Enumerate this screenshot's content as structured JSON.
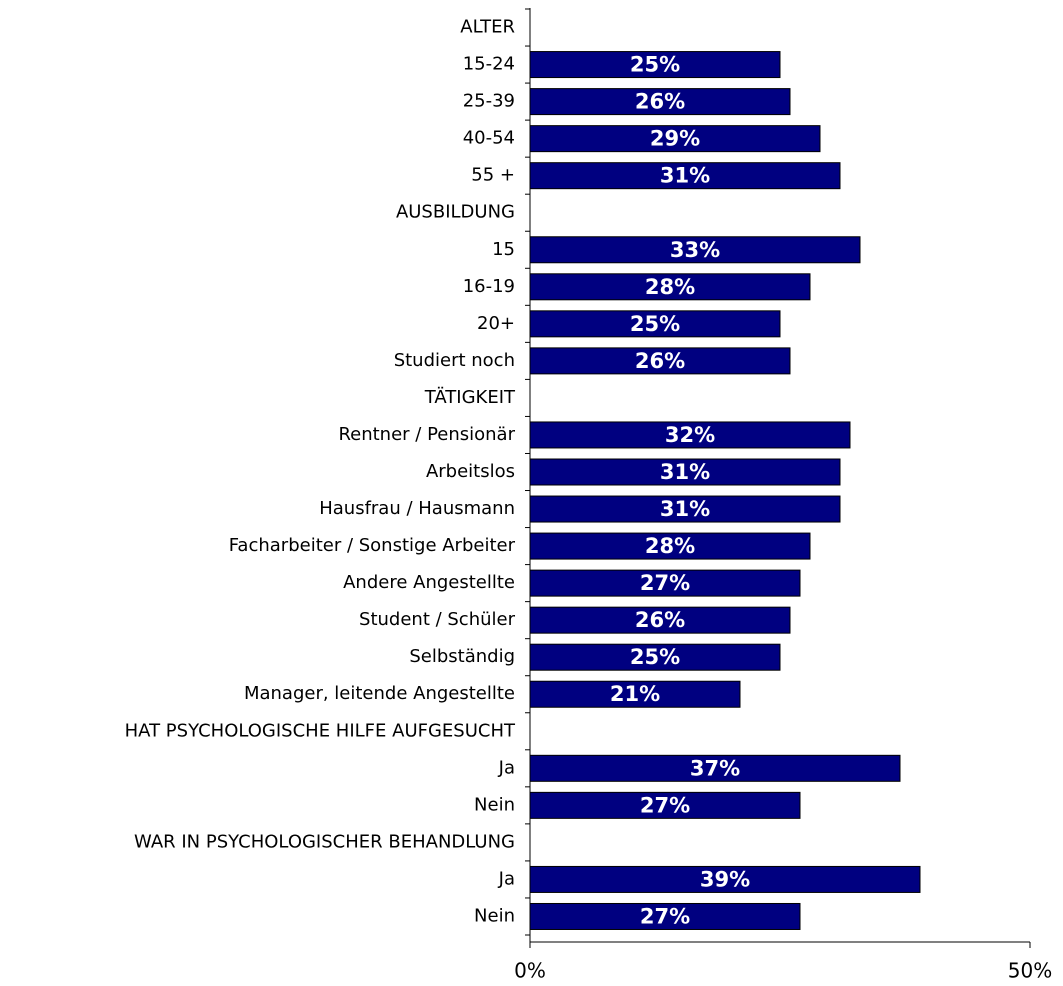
{
  "chart_data": {
    "type": "bar",
    "orientation": "horizontal",
    "color": "#000080",
    "categories": [
      "ALTER",
      "15-24",
      "25-39",
      "40-54",
      "55 +",
      "AUSBILDUNG",
      "15",
      "16-19",
      "20+",
      "Studiert noch",
      "TÄTIGKEIT",
      "Rentner / Pensionär",
      "Arbeitslos",
      "Hausfrau / Hausmann",
      "Facharbeiter / Sonstige Arbeiter",
      "Andere Angestellte",
      "Student / Schüler",
      "Selbständig",
      "Manager, leitende Angestellte",
      "HAT PSYCHOLOGISCHE HILFE AUFGESUCHT",
      "Ja",
      "Nein",
      "WAR IN PSYCHOLOGISCHER BEHANDLUNG",
      "Ja",
      "Nein"
    ],
    "values": [
      null,
      25,
      26,
      29,
      31,
      null,
      33,
      28,
      25,
      26,
      null,
      32,
      31,
      31,
      28,
      27,
      26,
      25,
      21,
      null,
      37,
      27,
      null,
      39,
      27
    ],
    "value_labels": [
      null,
      "25%",
      "26%",
      "29%",
      "31%",
      null,
      "33%",
      "28%",
      "25%",
      "26%",
      null,
      "32%",
      "31%",
      "31%",
      "28%",
      "27%",
      "26%",
      "25%",
      "21%",
      null,
      "37%",
      "27%",
      null,
      "39%",
      "27%"
    ],
    "xlim": [
      0,
      50
    ],
    "xticks": [
      {
        "value": 0,
        "label": "0%"
      },
      {
        "value": 50,
        "label": "50%"
      }
    ]
  }
}
